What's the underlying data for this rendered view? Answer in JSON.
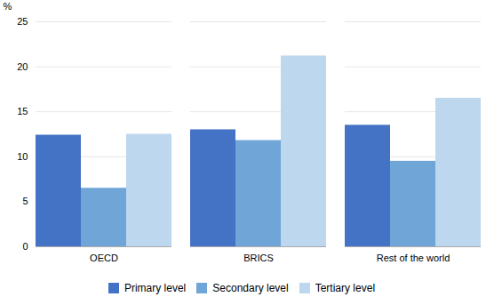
{
  "chart_data": {
    "type": "bar",
    "categories": [
      "OECD",
      "BRICS",
      "Rest of the world"
    ],
    "series": [
      {
        "name": "Primary level",
        "color": "#4472C4",
        "values": [
          12.4,
          13.0,
          13.5
        ]
      },
      {
        "name": "Secondary level",
        "color": "#70A5D8",
        "values": [
          6.5,
          11.8,
          9.5
        ]
      },
      {
        "name": "Tertiary level",
        "color": "#BDD7EE",
        "values": [
          12.5,
          21.2,
          16.5
        ]
      }
    ],
    "ylabel": "%",
    "ylim": [
      0,
      25
    ],
    "yticks": [
      0,
      5,
      10,
      15,
      20,
      25
    ],
    "grid": true,
    "legend": "bottom"
  }
}
